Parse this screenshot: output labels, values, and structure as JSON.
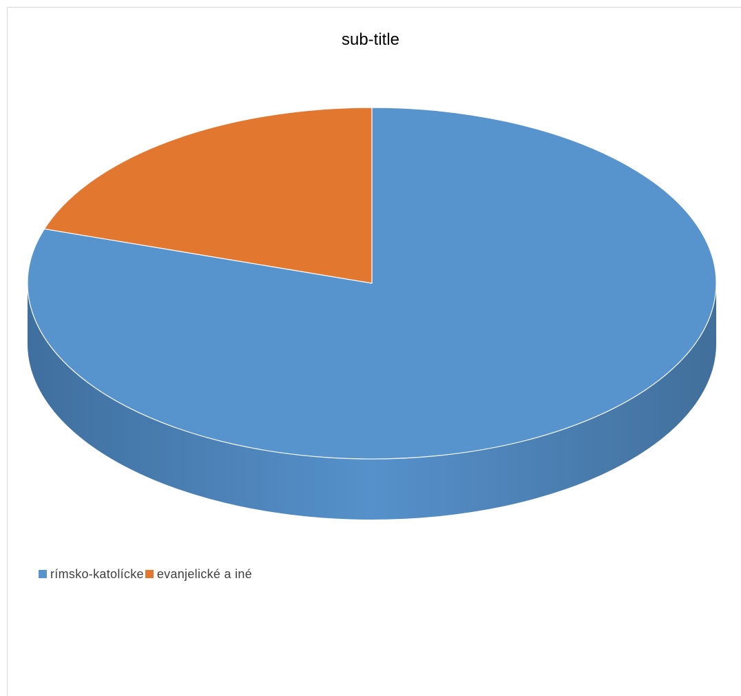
{
  "chart_data": {
    "type": "pie",
    "style": "3d",
    "title": "sub-title",
    "categories": [
      "rímsko-katolícke",
      "evanjelické a iné"
    ],
    "values": [
      80,
      20
    ],
    "colors": [
      "#5793CC",
      "#E27730"
    ],
    "start_angle": "12 o'clock",
    "direction": "clockwise",
    "legend": "bottom-left"
  }
}
